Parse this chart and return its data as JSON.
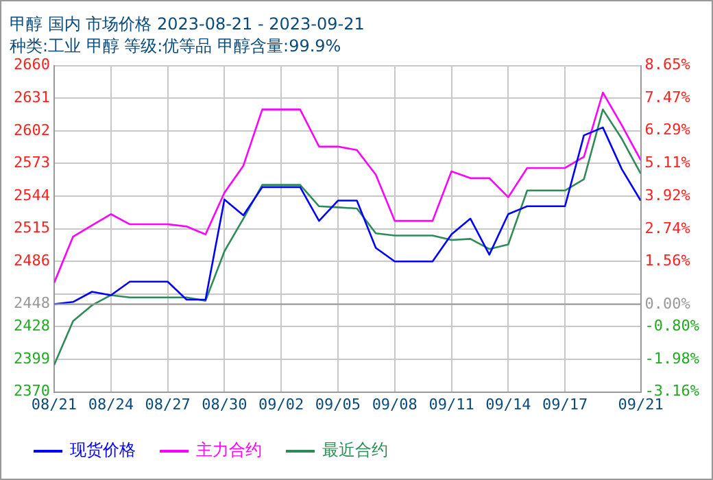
{
  "chart_data": {
    "type": "line",
    "title": "甲醇 国内 市场价格 2023-08-21 - 2023-09-21",
    "subtitle": "种类:工业 甲醇 等级:优等品 甲醇含量:99.9%",
    "series": [
      {
        "name": "现货价格",
        "color": "#0000ff",
        "x": [
          "2023-08-21",
          "2023-08-22",
          "2023-08-23",
          "2023-08-24",
          "2023-08-25",
          "2023-08-27",
          "2023-08-28",
          "2023-08-29",
          "2023-08-30",
          "2023-08-31",
          "2023-09-01",
          "2023-09-03",
          "2023-09-04",
          "2023-09-05",
          "2023-09-06",
          "2023-09-07",
          "2023-09-08",
          "2023-09-10",
          "2023-09-11",
          "2023-09-12",
          "2023-09-13",
          "2023-09-14",
          "2023-09-15",
          "2023-09-17",
          "2023-09-18",
          "2023-09-19",
          "2023-09-20",
          "2023-09-21"
        ],
        "values": [
          2448,
          2450,
          2459,
          2456,
          2468,
          2468,
          2452,
          2452,
          2541,
          2527,
          2552,
          2552,
          2522,
          2540,
          2540,
          2498,
          2486,
          2486,
          2510,
          2524,
          2492,
          2528,
          2535,
          2535,
          2598,
          2605,
          2568,
          2540
        ]
      },
      {
        "name": "主力合约",
        "color": "#ff00ff",
        "x": [
          "2023-08-21",
          "2023-08-22",
          "2023-08-23",
          "2023-08-24",
          "2023-08-25",
          "2023-08-27",
          "2023-08-28",
          "2023-08-29",
          "2023-08-30",
          "2023-08-31",
          "2023-09-01",
          "2023-09-03",
          "2023-09-04",
          "2023-09-05",
          "2023-09-06",
          "2023-09-07",
          "2023-09-08",
          "2023-09-10",
          "2023-09-11",
          "2023-09-12",
          "2023-09-13",
          "2023-09-14",
          "2023-09-15",
          "2023-09-17",
          "2023-09-18",
          "2023-09-19",
          "2023-09-20",
          "2023-09-21"
        ],
        "values": [
          2467,
          2508,
          2518,
          2528,
          2519,
          2519,
          2517,
          2510,
          2547,
          2571,
          2621,
          2621,
          2588,
          2588,
          2585,
          2563,
          2522,
          2522,
          2566,
          2560,
          2560,
          2543,
          2569,
          2569,
          2579,
          2636,
          2607,
          2576
        ]
      },
      {
        "name": "最近合约",
        "color": "#2e8b57",
        "x": [
          "2023-08-21",
          "2023-08-22",
          "2023-08-23",
          "2023-08-24",
          "2023-08-25",
          "2023-08-28",
          "2023-08-29",
          "2023-08-30",
          "2023-08-31",
          "2023-09-01",
          "2023-09-03",
          "2023-09-04",
          "2023-09-05",
          "2023-09-06",
          "2023-09-07",
          "2023-09-08",
          "2023-09-10",
          "2023-09-11",
          "2023-09-12",
          "2023-09-13",
          "2023-09-14",
          "2023-09-15",
          "2023-09-17",
          "2023-09-18",
          "2023-09-19",
          "2023-09-20",
          "2023-09-21"
        ],
        "values": [
          2394,
          2433,
          2447,
          2456,
          2454,
          2454,
          2451,
          2495,
          2524,
          2554,
          2554,
          2535,
          2534,
          2533,
          2511,
          2509,
          2509,
          2505,
          2506,
          2497,
          2501,
          2549,
          2549,
          2559,
          2621,
          2595,
          2564
        ]
      }
    ],
    "xlim": [
      "2023-08-21",
      "2023-09-21"
    ],
    "xticks": [
      {
        "value": "2023-08-21",
        "label": "08/21"
      },
      {
        "value": "2023-08-24",
        "label": "08/24"
      },
      {
        "value": "2023-08-27",
        "label": "08/27"
      },
      {
        "value": "2023-08-30",
        "label": "08/30"
      },
      {
        "value": "2023-09-02",
        "label": "09/02"
      },
      {
        "value": "2023-09-05",
        "label": "09/05"
      },
      {
        "value": "2023-09-08",
        "label": "09/08"
      },
      {
        "value": "2023-09-11",
        "label": "09/11"
      },
      {
        "value": "2023-09-14",
        "label": "09/14"
      },
      {
        "value": "2023-09-17",
        "label": "09/17"
      },
      {
        "value": "2023-09-21",
        "label": "09/21"
      }
    ],
    "ylim": [
      2370,
      2660
    ],
    "yticks": [
      2370,
      2399,
      2428,
      2448,
      {
        "value": 2457,
        "label": null
      },
      2486,
      2515,
      2544,
      2573,
      2602,
      2631,
      2660
    ],
    "y2lim": [
      -3.16,
      8.65
    ],
    "y2ticks": [
      {
        "value": -3.16,
        "label": "-3.16%"
      },
      {
        "value": -1.98,
        "label": "-1.98%"
      },
      {
        "value": -0.8,
        "label": "-0.80%"
      },
      {
        "value": 0,
        "label": "0.00%"
      },
      {
        "value": 1.56,
        "label": "1.56%"
      },
      {
        "value": 2.74,
        "label": "2.74%"
      },
      {
        "value": 3.92,
        "label": "3.92%"
      },
      {
        "value": 5.11,
        "label": "5.11%"
      },
      {
        "value": 6.29,
        "label": "6.29%"
      },
      {
        "value": 7.47,
        "label": "7.47%"
      },
      {
        "value": 8.65,
        "label": "8.65%"
      }
    ],
    "ref_lines": [
      {
        "axis": "y",
        "value": 2448,
        "color": "#999999"
      }
    ],
    "grid": true,
    "legend": "bottom",
    "marker": "none",
    "line_style": "solid"
  }
}
